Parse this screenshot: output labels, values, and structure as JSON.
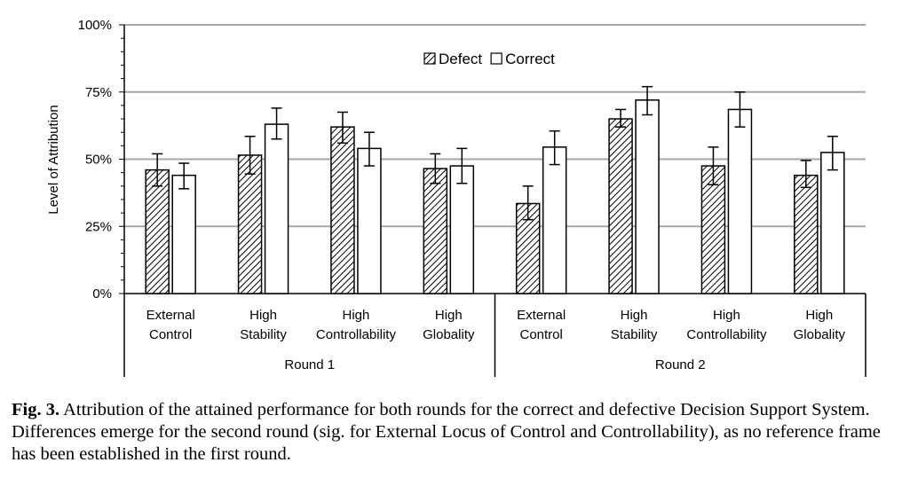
{
  "chart_data": {
    "type": "bar",
    "ylabel": "Level of Attribution",
    "ylim": [
      0,
      100
    ],
    "yticks": [
      "0%",
      "25%",
      "50%",
      "75%",
      "100%"
    ],
    "grid": true,
    "legend_position": "top-center",
    "groups": [
      {
        "name": "Round 1",
        "categories": [
          [
            "External",
            "Control"
          ],
          [
            "High",
            "Stability"
          ],
          [
            "High",
            "Controllability"
          ],
          [
            "High",
            "Globality"
          ]
        ]
      },
      {
        "name": "Round 2",
        "categories": [
          [
            "External",
            "Control"
          ],
          [
            "High",
            "Stability"
          ],
          [
            "High",
            "Controllability"
          ],
          [
            "High",
            "Globality"
          ]
        ]
      }
    ],
    "series": [
      {
        "name": "Defect",
        "pattern": "hatched",
        "values": [
          46,
          51.5,
          62,
          46.5,
          33.5,
          65,
          47.5,
          44
        ],
        "err_low": [
          40,
          44.5,
          56,
          41,
          27.5,
          62,
          40.5,
          39.5
        ],
        "err_high": [
          52,
          58.5,
          67.5,
          52,
          40,
          68.5,
          54.5,
          49.5
        ]
      },
      {
        "name": "Correct",
        "pattern": "white",
        "values": [
          44,
          63,
          54,
          47.5,
          54.5,
          72,
          68.5,
          52.5
        ],
        "err_low": [
          39,
          57.5,
          47.5,
          41,
          48,
          66.5,
          62,
          46
        ],
        "err_high": [
          48.5,
          69,
          60,
          54,
          60.5,
          77,
          75,
          58.5
        ]
      }
    ],
    "colors": {
      "bar_stroke": "#000000",
      "grid": "#a6a6a6",
      "hatch": "#000000",
      "bar_fill": "#ffffff"
    }
  },
  "caption": {
    "label": "Fig. 3.",
    "text": "Attribution of the attained performance for both rounds for the correct and defective Decision Support System. Differences emerge for the second round (sig. for External Locus of Control and Controllability), as no reference frame has been established in the first round."
  }
}
